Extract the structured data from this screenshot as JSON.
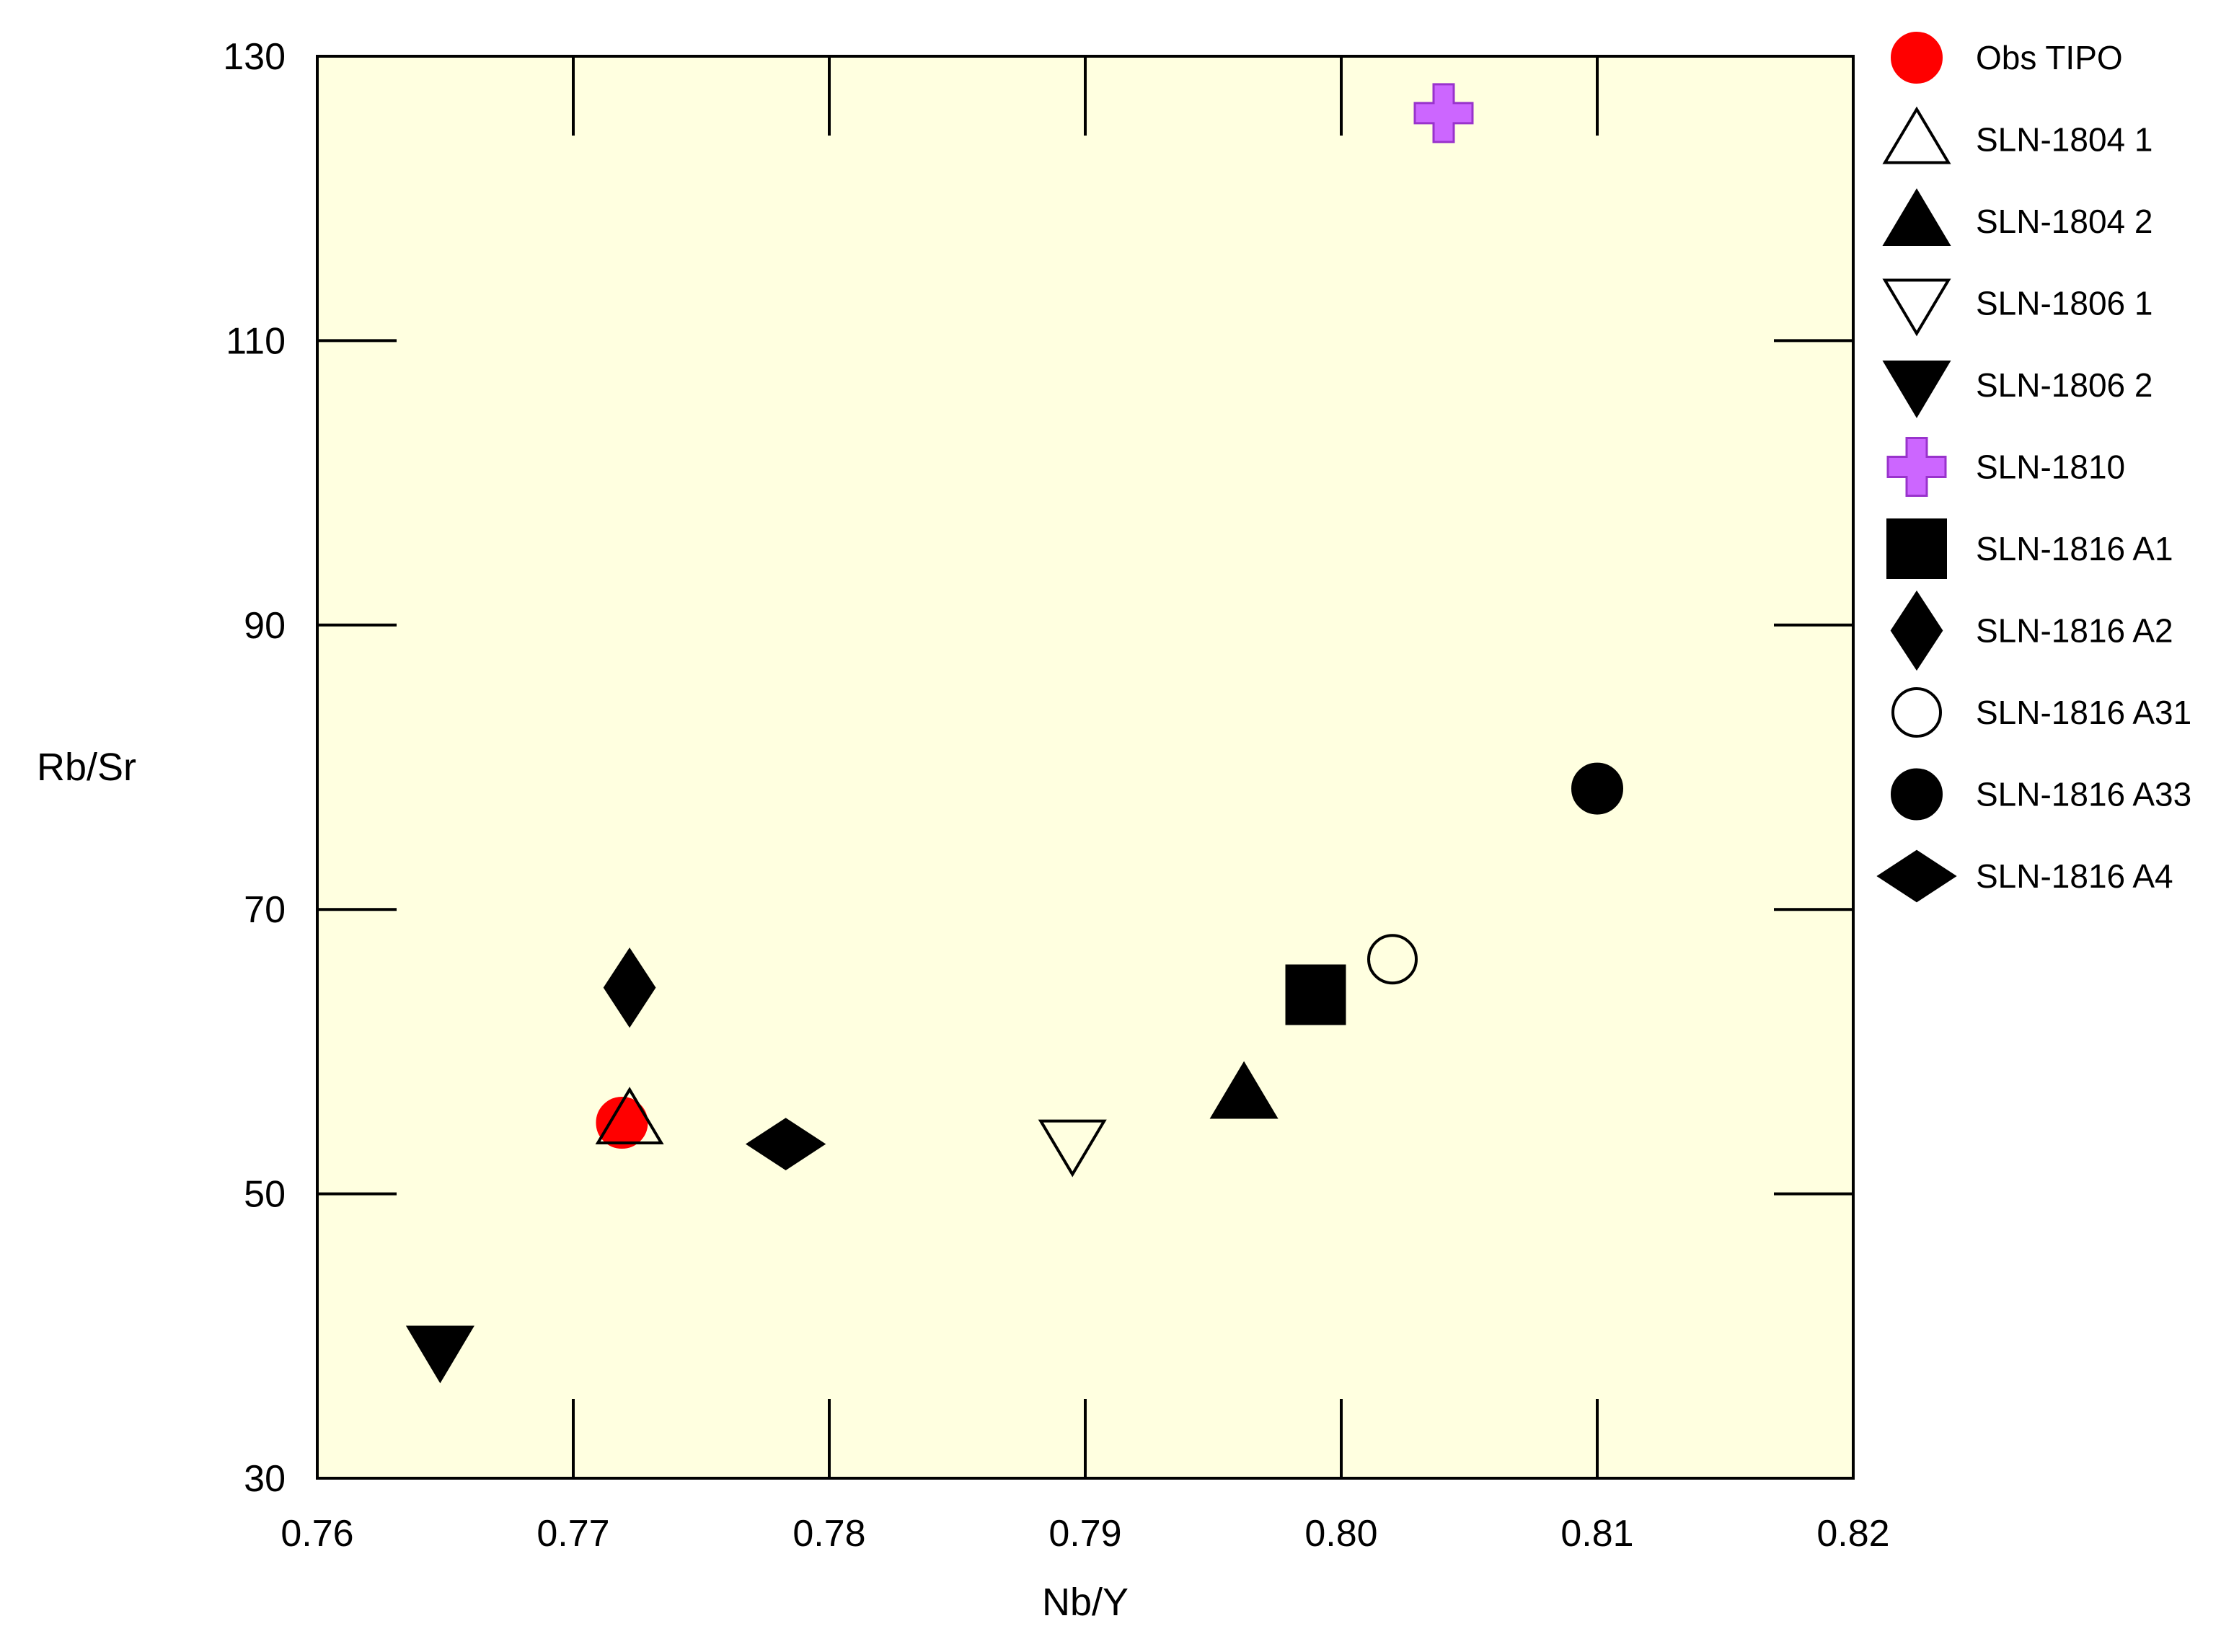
{
  "chart_data": {
    "type": "scatter",
    "xlabel": "Nb/Y",
    "ylabel": "Rb/Sr",
    "xlim": [
      0.76,
      0.82
    ],
    "ylim": [
      30,
      130
    ],
    "x_ticks": [
      0.76,
      0.77,
      0.78,
      0.79,
      0.8,
      0.81,
      0.82
    ],
    "x_tick_labels": [
      "0.76",
      "0.77",
      "0.78",
      "0.79",
      "0.80",
      "0.81",
      "0.82"
    ],
    "y_ticks": [
      30,
      50,
      70,
      90,
      110,
      130
    ],
    "y_tick_labels": [
      "30",
      "50",
      "70",
      "90",
      "110",
      "130"
    ],
    "grid": false,
    "plot_background": "#ffffe0",
    "legend_position": "right",
    "series": [
      {
        "name": "Obs TIPO",
        "marker": "circle-filled",
        "color": "#ff0000",
        "x": 0.7719,
        "y": 55.0
      },
      {
        "name": "SLN-1804 1",
        "marker": "triangle-up-open",
        "color": "#000000",
        "x": 0.7722,
        "y": 55.2
      },
      {
        "name": "SLN-1804 2",
        "marker": "triangle-up-filled",
        "color": "#000000",
        "x": 0.7962,
        "y": 57.0
      },
      {
        "name": "SLN-1806 1",
        "marker": "triangle-down-open",
        "color": "#000000",
        "x": 0.7895,
        "y": 53.5
      },
      {
        "name": "SLN-1806 2",
        "marker": "triangle-down-filled",
        "color": "#000000",
        "x": 0.7648,
        "y": 39.0
      },
      {
        "name": "SLN-1810",
        "marker": "plus-filled",
        "color": "#cc66ff",
        "x": 0.804,
        "y": 126.0
      },
      {
        "name": "SLN-1816 A1",
        "marker": "square-filled",
        "color": "#000000",
        "x": 0.799,
        "y": 64.0
      },
      {
        "name": "SLN-1816 A2",
        "marker": "diamond-tall-filled",
        "color": "#000000",
        "x": 0.7722,
        "y": 64.5
      },
      {
        "name": "SLN-1816 A31",
        "marker": "circle-open",
        "color": "#000000",
        "x": 0.802,
        "y": 66.5
      },
      {
        "name": "SLN-1816 A33",
        "marker": "circle-filled",
        "color": "#000000",
        "x": 0.81,
        "y": 78.5
      },
      {
        "name": "SLN-1816 A4",
        "marker": "diamond-wide-filled",
        "color": "#000000",
        "x": 0.7783,
        "y": 53.5
      }
    ]
  }
}
